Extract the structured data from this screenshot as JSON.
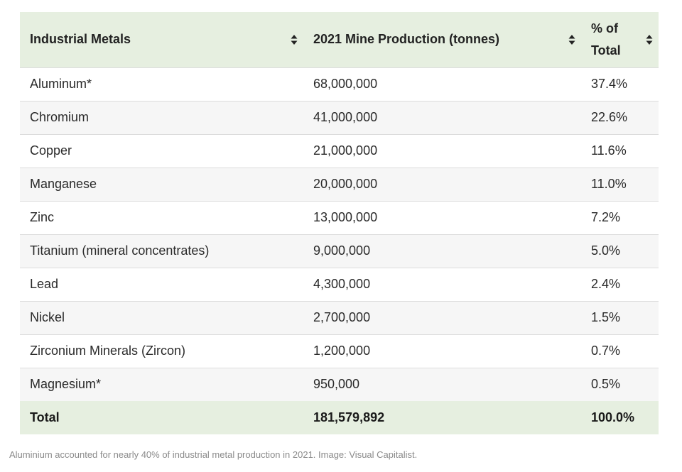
{
  "table": {
    "headers": [
      "Industrial Metals",
      "2021 Mine Production (tonnes)",
      "% of Total"
    ],
    "rows": [
      [
        "Aluminum*",
        "68,000,000",
        "37.4%"
      ],
      [
        "Chromium",
        "41,000,000",
        "22.6%"
      ],
      [
        "Copper",
        "21,000,000",
        "11.6%"
      ],
      [
        "Manganese",
        "20,000,000",
        "11.0%"
      ],
      [
        "Zinc",
        "13,000,000",
        "7.2%"
      ],
      [
        "Titanium (mineral concentrates)",
        "9,000,000",
        "5.0%"
      ],
      [
        "Lead",
        "4,300,000",
        "2.4%"
      ],
      [
        "Nickel",
        "2,700,000",
        "1.5%"
      ],
      [
        "Zirconium Minerals (Zircon)",
        "1,200,000",
        "0.7%"
      ],
      [
        "Magnesium*",
        "950,000",
        "0.5%"
      ]
    ],
    "total": [
      "Total",
      "181,579,892",
      "100.0%"
    ]
  },
  "chart_data": {
    "type": "table",
    "columns": [
      "Industrial Metals",
      "2021 Mine Production (tonnes)",
      "% of Total"
    ],
    "rows": [
      {
        "metal": "Aluminum*",
        "production_tonnes": 68000000,
        "percent_of_total": 37.4
      },
      {
        "metal": "Chromium",
        "production_tonnes": 41000000,
        "percent_of_total": 22.6
      },
      {
        "metal": "Copper",
        "production_tonnes": 21000000,
        "percent_of_total": 11.6
      },
      {
        "metal": "Manganese",
        "production_tonnes": 20000000,
        "percent_of_total": 11.0
      },
      {
        "metal": "Zinc",
        "production_tonnes": 13000000,
        "percent_of_total": 7.2
      },
      {
        "metal": "Titanium (mineral concentrates)",
        "production_tonnes": 9000000,
        "percent_of_total": 5.0
      },
      {
        "metal": "Lead",
        "production_tonnes": 4300000,
        "percent_of_total": 2.4
      },
      {
        "metal": "Nickel",
        "production_tonnes": 2700000,
        "percent_of_total": 1.5
      },
      {
        "metal": "Zirconium Minerals (Zircon)",
        "production_tonnes": 1200000,
        "percent_of_total": 0.7
      },
      {
        "metal": "Magnesium*",
        "production_tonnes": 950000,
        "percent_of_total": 0.5
      }
    ],
    "total": {
      "metal": "Total",
      "production_tonnes": 181579892,
      "percent_of_total": 100.0
    }
  },
  "caption": "Aluminium accounted for nearly 40% of industrial metal production in 2021. Image: Visual Capitalist.",
  "colors": {
    "header_bg": "#e6efe0",
    "row_alt_bg": "#f6f6f6",
    "text": "#222222",
    "caption": "#8a8a8a"
  },
  "icons": {
    "sort": "sort-updown-icon"
  }
}
